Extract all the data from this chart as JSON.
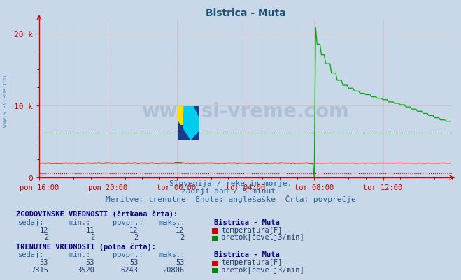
{
  "title": "Bistrica - Muta",
  "title_color": "#1a5276",
  "bg_color": "#c8d8e8",
  "plot_bg_color": "#c8d8e8",
  "x_tick_labels": [
    "pon 16:00",
    "pon 20:00",
    "tor 00:00",
    "tor 04:00",
    "tor 08:00",
    "tor 12:00"
  ],
  "y_tick_labels": [
    "0",
    "10 k",
    "20 k"
  ],
  "subtitle_color": "#2060a0",
  "subtitle1": "Slovenija / reke in morje.",
  "subtitle2": "zadnji dan / 5 minut.",
  "subtitle3": "Meritve: trenutne  Enote: anglešaške  Črta: povprečje",
  "watermark": "www.si-vreme.com",
  "watermark_color": "#1a3a6b",
  "watermark_alpha": 0.15,
  "sidebar_text": "www.si-vreme.com",
  "sidebar_color": "#4080b0",
  "flow_color": "#00aa00",
  "temp_color": "#cc0000",
  "flow_avg": 6243,
  "temp_avg_scaled": 566,
  "axline_color": "#cc0000",
  "tick_color": "#cc0000",
  "table_header_color": "#000080",
  "table_col_color": "#2060a0",
  "table_val_color": "#1a3a6b",
  "hist_temp_vals": [
    "12",
    "11",
    "12",
    "12"
  ],
  "hist_flow_vals": [
    "2",
    "2",
    "2",
    "2"
  ],
  "curr_temp_vals": [
    "53",
    "53",
    "53",
    "53"
  ],
  "curr_flow_vals": [
    "7815",
    "3520",
    "6243",
    "20806"
  ],
  "temp_rect_color": "#cc0000",
  "flow_rect_color": "#008800",
  "ylim_max": 22000,
  "xlim_max": 288
}
